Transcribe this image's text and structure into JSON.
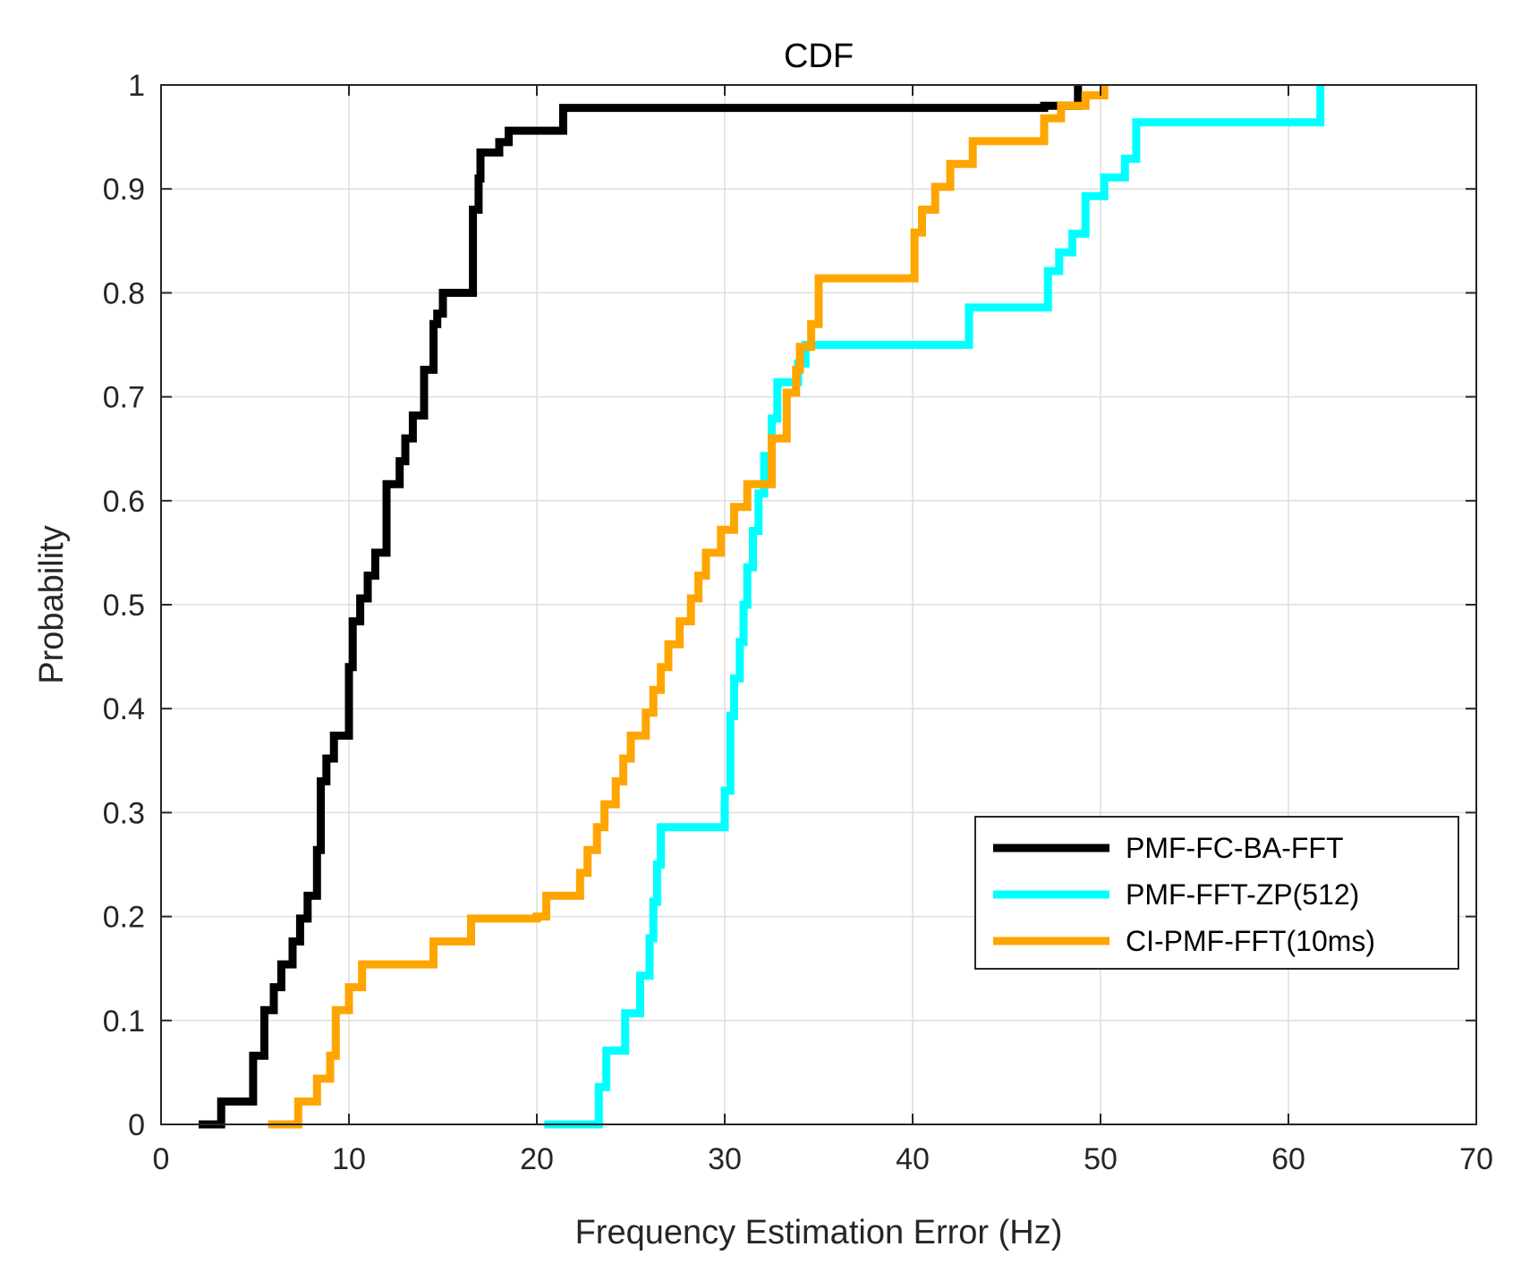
{
  "chart_data": {
    "type": "line",
    "title": "CDF",
    "xlabel": "Frequency Estimation Error (Hz)",
    "ylabel": "Probability",
    "xlim": [
      0,
      70
    ],
    "ylim": [
      0,
      1
    ],
    "xticks": [
      "0",
      "10",
      "20",
      "30",
      "40",
      "50",
      "60",
      "70"
    ],
    "yticks": [
      "0",
      "0.1",
      "0.2",
      "0.3",
      "0.4",
      "0.5",
      "0.6",
      "0.7",
      "0.8",
      "0.9",
      "1"
    ],
    "grid": true,
    "legend_position": "lower-right",
    "series": [
      {
        "name": "PMF-FC-BA-FFT",
        "color": "#000000",
        "x": [
          2.0,
          3.2,
          4.9,
          5.5,
          6.0,
          6.4,
          7.0,
          7.4,
          7.8,
          8.3,
          8.5,
          8.8,
          9.2,
          10.0,
          10.2,
          10.6,
          11.0,
          11.4,
          12.0,
          12.7,
          13.0,
          13.4,
          14.0,
          14.5,
          14.7,
          15.0,
          16.6,
          16.9,
          17.0,
          18.0,
          18.5,
          21.4,
          47.0,
          48.8
        ],
        "y": [
          0.0,
          0.022,
          0.066,
          0.11,
          0.132,
          0.154,
          0.176,
          0.198,
          0.22,
          0.264,
          0.33,
          0.352,
          0.374,
          0.44,
          0.484,
          0.506,
          0.528,
          0.55,
          0.616,
          0.638,
          0.66,
          0.682,
          0.726,
          0.77,
          0.78,
          0.8,
          0.88,
          0.91,
          0.935,
          0.945,
          0.956,
          0.978,
          0.98,
          1.0
        ]
      },
      {
        "name": "PMF-FFT-ZP(512)",
        "color": "#00FFFF",
        "x": [
          20.4,
          23.3,
          23.7,
          24.7,
          25.5,
          26.0,
          26.2,
          26.4,
          26.6,
          30.0,
          30.3,
          30.5,
          30.8,
          31.0,
          31.2,
          31.5,
          31.8,
          32.1,
          32.5,
          32.8,
          33.9,
          34.3,
          43.0,
          47.2,
          47.8,
          48.5,
          49.2,
          50.2,
          51.3,
          51.9,
          61.7
        ],
        "y": [
          0.0,
          0.036,
          0.071,
          0.107,
          0.143,
          0.179,
          0.214,
          0.25,
          0.286,
          0.321,
          0.393,
          0.429,
          0.464,
          0.5,
          0.536,
          0.571,
          0.607,
          0.643,
          0.679,
          0.714,
          0.732,
          0.75,
          0.786,
          0.821,
          0.839,
          0.857,
          0.893,
          0.911,
          0.929,
          0.964,
          1.0
        ]
      },
      {
        "name": "CI-PMF-FFT(10ms)",
        "color": "#FFA500",
        "x": [
          5.7,
          7.3,
          8.3,
          9.0,
          9.3,
          10.0,
          10.7,
          14.5,
          16.5,
          20.0,
          20.5,
          22.3,
          22.7,
          23.2,
          23.6,
          24.2,
          24.6,
          25.0,
          25.8,
          26.2,
          26.6,
          27.0,
          27.6,
          28.2,
          28.6,
          29.0,
          29.8,
          30.5,
          31.2,
          32.5,
          33.3,
          33.8,
          34.0,
          34.6,
          35.0,
          40.1,
          40.5,
          41.2,
          42.0,
          43.2,
          47.0,
          47.9,
          49.2,
          50.2
        ],
        "y": [
          0.0,
          0.022,
          0.044,
          0.066,
          0.11,
          0.132,
          0.154,
          0.176,
          0.198,
          0.2,
          0.22,
          0.242,
          0.264,
          0.286,
          0.308,
          0.33,
          0.352,
          0.374,
          0.396,
          0.418,
          0.44,
          0.462,
          0.484,
          0.506,
          0.528,
          0.55,
          0.572,
          0.594,
          0.616,
          0.66,
          0.704,
          0.726,
          0.748,
          0.77,
          0.814,
          0.858,
          0.88,
          0.902,
          0.924,
          0.946,
          0.968,
          0.98,
          0.99,
          1.0
        ]
      }
    ]
  }
}
